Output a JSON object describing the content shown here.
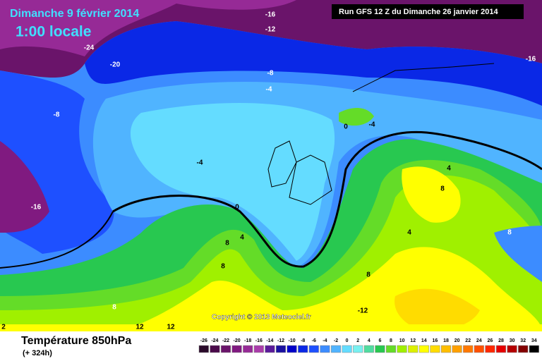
{
  "header": {
    "date": "Dimanche 9 février 2014",
    "time": "1:00 locale",
    "run": "Run GFS 12 Z du Dimanche 26 janvier 2014"
  },
  "copyright": "Copyright © 2013 Meteociel.fr",
  "footer": {
    "title": "Température 850hPa",
    "lead": "(+ 324h)"
  },
  "contour_labels": [
    -16,
    -12,
    -24,
    -20,
    -8,
    -4,
    -8,
    0,
    -4,
    -4,
    0,
    -16,
    4,
    8,
    8,
    4,
    8,
    8,
    8,
    -12,
    12,
    12,
    2,
    -16,
    8,
    4
  ],
  "colorbar": {
    "labels": [
      -26,
      -24,
      -22,
      -20,
      -18,
      -16,
      -14,
      -12,
      -10,
      -8,
      -6,
      -4,
      -2,
      0,
      2,
      4,
      6,
      8,
      10,
      12,
      14,
      16,
      18,
      20,
      22,
      24,
      26,
      28,
      30,
      32,
      34
    ],
    "colors": [
      "#2a0a2a",
      "#4a0a4a",
      "#6a146a",
      "#801a80",
      "#962a96",
      "#aa3caa",
      "#5a1a9a",
      "#1a10a0",
      "#0000c8",
      "#0a28e6",
      "#1e50ff",
      "#3c8cff",
      "#50b4ff",
      "#64dcff",
      "#78f0f0",
      "#50dca0",
      "#28c850",
      "#64dc28",
      "#a0f000",
      "#dcf000",
      "#ffff00",
      "#ffdc00",
      "#ffbe00",
      "#ffa000",
      "#ff7800",
      "#ff5000",
      "#ff2800",
      "#e60000",
      "#b40000",
      "#820000",
      "#000000"
    ]
  }
}
